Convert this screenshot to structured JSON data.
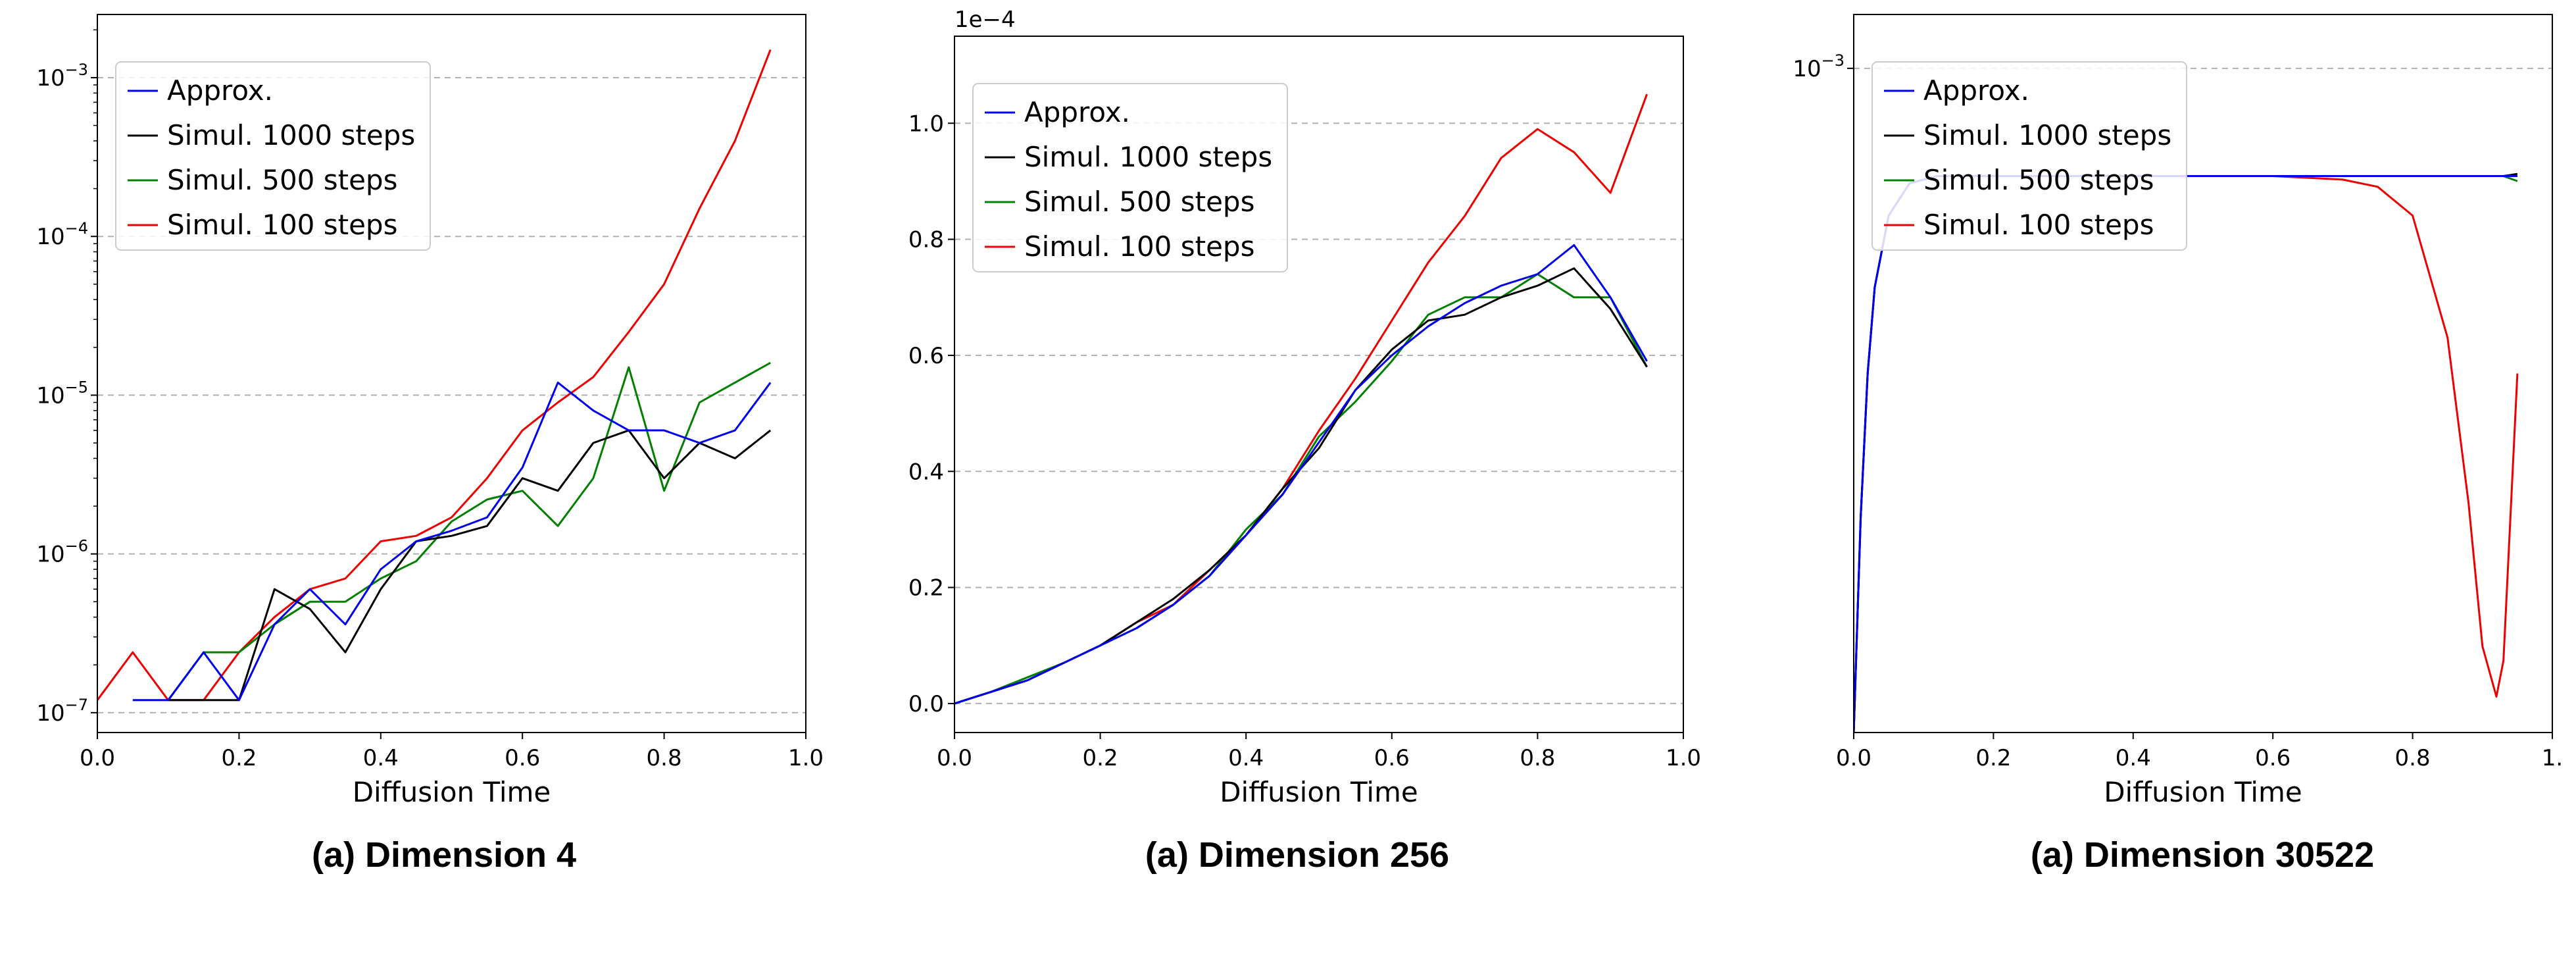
{
  "colors": {
    "approx": "#0000ee",
    "s1000": "#000000",
    "s500": "#008000",
    "s100": "#ee0000",
    "grid": "#b0b0b0"
  },
  "chart_data": [
    {
      "type": "line",
      "caption": "(a) Dimension 4",
      "xlabel": "Diffusion Time",
      "ylabel": "",
      "yscale": "log",
      "xlim": [
        0.0,
        1.0
      ],
      "ylim": [
        7.5e-08,
        0.0025
      ],
      "xticks": [
        "0.0",
        "0.2",
        "0.4",
        "0.6",
        "0.8",
        "1.0"
      ],
      "yticks_label": [
        "10^-7",
        "10^-6",
        "10^-5",
        "10^-4",
        "10^-3"
      ],
      "grid": "y dashed",
      "legend": "upper-left",
      "x": [
        0.0,
        0.05,
        0.1,
        0.15,
        0.2,
        0.25,
        0.3,
        0.35,
        0.4,
        0.45,
        0.5,
        0.55,
        0.6,
        0.65,
        0.7,
        0.75,
        0.8,
        0.85,
        0.9,
        0.95
      ],
      "series": [
        {
          "name": "Approx.",
          "color": "approx",
          "values": [
            null,
            1.2e-07,
            1.2e-07,
            2.4e-07,
            1.2e-07,
            3.6e-07,
            6e-07,
            3.6e-07,
            8e-07,
            1.2e-06,
            1.4e-06,
            1.7e-06,
            3.5e-06,
            1.2e-05,
            8e-06,
            6e-06,
            6e-06,
            5e-06,
            6e-06,
            1.2e-05
          ]
        },
        {
          "name": "Simul. 1000 steps",
          "color": "s1000",
          "values": [
            null,
            null,
            1.2e-07,
            1.2e-07,
            1.2e-07,
            6e-07,
            4.5e-07,
            2.4e-07,
            6e-07,
            1.2e-06,
            1.3e-06,
            1.5e-06,
            3e-06,
            2.5e-06,
            5e-06,
            6e-06,
            3e-06,
            5e-06,
            4e-06,
            6e-06
          ]
        },
        {
          "name": "Simul. 500 steps",
          "color": "s500",
          "values": [
            null,
            null,
            1.2e-07,
            2.4e-07,
            2.4e-07,
            3.6e-07,
            5e-07,
            5e-07,
            7e-07,
            9e-07,
            1.6e-06,
            2.2e-06,
            2.5e-06,
            1.5e-06,
            3e-06,
            1.5e-05,
            2.5e-06,
            9e-06,
            1.2e-05,
            1.6e-05
          ]
        },
        {
          "name": "Simul. 100 steps",
          "color": "s100",
          "values": [
            1.2e-07,
            2.4e-07,
            1.2e-07,
            1.2e-07,
            2.4e-07,
            4e-07,
            6e-07,
            7e-07,
            1.2e-06,
            1.3e-06,
            1.7e-06,
            3e-06,
            6e-06,
            9e-06,
            1.3e-05,
            2.5e-05,
            5e-05,
            0.00015,
            0.0004,
            0.0015
          ]
        }
      ]
    },
    {
      "type": "line",
      "caption": "(a) Dimension 256",
      "xlabel": "Diffusion Time",
      "ylabel": "",
      "yscale": "linear",
      "offset_label": "1e−4",
      "xlim": [
        0.0,
        1.0
      ],
      "ylim": [
        -0.05,
        1.15
      ],
      "xticks": [
        "0.0",
        "0.2",
        "0.4",
        "0.6",
        "0.8",
        "1.0"
      ],
      "yticks_label": [
        "0.0",
        "0.2",
        "0.4",
        "0.6",
        "0.8",
        "1.0"
      ],
      "grid": "y dashed",
      "legend": "upper-left",
      "x": [
        0.0,
        0.05,
        0.1,
        0.15,
        0.2,
        0.25,
        0.3,
        0.35,
        0.4,
        0.45,
        0.5,
        0.55,
        0.6,
        0.65,
        0.7,
        0.75,
        0.8,
        0.85,
        0.9,
        0.95
      ],
      "series": [
        {
          "name": "Approx.",
          "color": "approx",
          "values": [
            0.0,
            0.02,
            0.04,
            0.07,
            0.1,
            0.13,
            0.17,
            0.22,
            0.29,
            0.36,
            0.45,
            0.54,
            0.6,
            0.65,
            0.69,
            0.72,
            0.74,
            0.79,
            0.7,
            0.59
          ]
        },
        {
          "name": "Simul. 1000 steps",
          "color": "s1000",
          "values": [
            0.0,
            0.02,
            0.04,
            0.07,
            0.1,
            0.14,
            0.18,
            0.23,
            0.29,
            0.37,
            0.44,
            0.54,
            0.61,
            0.66,
            0.67,
            0.7,
            0.72,
            0.75,
            0.68,
            0.58
          ]
        },
        {
          "name": "Simul. 500 steps",
          "color": "s500",
          "values": [
            0.0,
            0.02,
            0.045,
            0.07,
            0.1,
            0.13,
            0.17,
            0.22,
            0.3,
            0.36,
            0.46,
            0.52,
            0.59,
            0.67,
            0.7,
            0.7,
            0.74,
            0.7,
            0.7,
            0.58
          ]
        },
        {
          "name": "Simul. 100 steps",
          "color": "s100",
          "values": [
            0.0,
            0.02,
            0.04,
            0.07,
            0.1,
            0.14,
            0.17,
            0.23,
            0.29,
            0.37,
            0.47,
            0.56,
            0.66,
            0.76,
            0.84,
            0.94,
            0.99,
            0.95,
            0.88,
            1.05
          ]
        }
      ]
    },
    {
      "type": "line",
      "caption": "(a) Dimension 30522",
      "xlabel": "Diffusion Time",
      "ylabel": "",
      "yscale": "log",
      "xlim": [
        0.0,
        1.0
      ],
      "ylim": [
        0.0,
        1.0
      ],
      "xticks": [
        "0.0",
        "0.2",
        "0.4",
        "0.6",
        "0.8",
        "1."
      ],
      "yticks_label": [
        "10^-3"
      ],
      "grid": "y dashed",
      "legend": "upper-left",
      "x": [
        0.0,
        0.01,
        0.02,
        0.03,
        0.05,
        0.08,
        0.12,
        0.2,
        0.3,
        0.4,
        0.5,
        0.6,
        0.7,
        0.75,
        0.8,
        0.85,
        0.88,
        0.9,
        0.92,
        0.93,
        0.95
      ],
      "series": [
        {
          "name": "Approx.",
          "color": "approx",
          "values": [
            0.0,
            0.3,
            0.5,
            0.62,
            0.72,
            0.765,
            0.775,
            0.775,
            0.775,
            0.775,
            0.775,
            0.775,
            0.775,
            0.775,
            0.775,
            0.775,
            0.775,
            0.775,
            0.775,
            0.775,
            0.775
          ]
        },
        {
          "name": "Simul. 1000 steps",
          "color": "s1000",
          "values": [
            0.0,
            0.3,
            0.5,
            0.62,
            0.72,
            0.765,
            0.775,
            0.775,
            0.775,
            0.775,
            0.775,
            0.775,
            0.775,
            0.775,
            0.775,
            0.775,
            0.775,
            0.775,
            0.775,
            0.775,
            0.778
          ]
        },
        {
          "name": "Simul. 500 steps",
          "color": "s500",
          "values": [
            0.0,
            0.3,
            0.5,
            0.62,
            0.72,
            0.765,
            0.775,
            0.775,
            0.775,
            0.775,
            0.775,
            0.775,
            0.775,
            0.775,
            0.775,
            0.775,
            0.775,
            0.775,
            0.775,
            0.775,
            0.768
          ]
        },
        {
          "name": "Simul. 100 steps",
          "color": "s100",
          "values": [
            0.0,
            0.3,
            0.5,
            0.62,
            0.72,
            0.765,
            0.775,
            0.775,
            0.775,
            0.775,
            0.775,
            0.775,
            0.77,
            0.76,
            0.72,
            0.55,
            0.32,
            0.12,
            0.05,
            0.1,
            0.5
          ]
        }
      ]
    }
  ]
}
